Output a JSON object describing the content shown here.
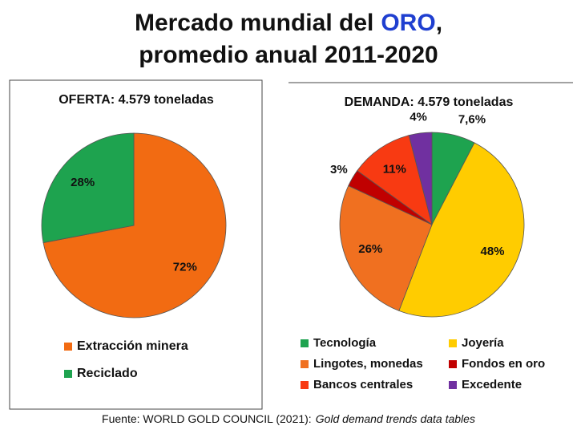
{
  "title": {
    "text_before": "Mercado mundial del",
    "highlight": "ORO",
    "text_after": ",",
    "line2": "promedio anual 2011-2020"
  },
  "chart_data": [
    {
      "type": "pie",
      "title": "OFERTA: 4.579 toneladas",
      "categories": [
        "Extracción minera",
        "Reciclado"
      ],
      "values": [
        72,
        28
      ],
      "value_labels": [
        "72%",
        "28%"
      ],
      "colors": [
        "#f26b12",
        "#1ea34f"
      ]
    },
    {
      "type": "pie",
      "title": "DEMANDA: 4.579 toneladas",
      "categories": [
        "Tecnología",
        "Joyería",
        "Lingotes, monedas",
        "Fondos en oro",
        "Bancos centrales",
        "Excedente"
      ],
      "values": [
        7.6,
        48,
        26,
        3,
        11,
        4
      ],
      "value_labels": [
        "7,6%",
        "48%",
        "26%",
        "3%",
        "11%",
        "4%"
      ],
      "colors": [
        "#1ea34f",
        "#ffcc00",
        "#f07020",
        "#c00000",
        "#f83a12",
        "#7030a0"
      ]
    }
  ],
  "footer": {
    "source": "Fuente: WORLD GOLD COUNCIL (2021):",
    "publication": "Gold demand trends data tables"
  }
}
